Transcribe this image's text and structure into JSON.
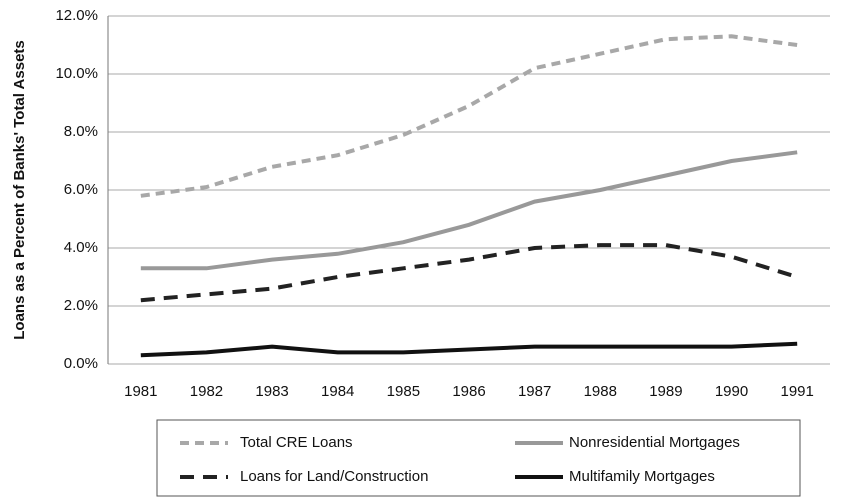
{
  "chart_data": {
    "type": "line",
    "y_label": "Loans as a Percent of Banks' Total Assets",
    "categories": [
      "1981",
      "1982",
      "1983",
      "1984",
      "1985",
      "1986",
      "1987",
      "1988",
      "1989",
      "1990",
      "1991"
    ],
    "series": [
      {
        "name": "Total CRE Loans",
        "color": "#a8a8a8",
        "style": "dashed",
        "values": [
          5.8,
          6.1,
          6.8,
          7.2,
          7.9,
          8.9,
          10.2,
          10.7,
          11.2,
          11.3,
          11.0
        ]
      },
      {
        "name": "Nonresidential Mortgages",
        "color": "#999999",
        "style": "solid",
        "values": [
          3.3,
          3.3,
          3.6,
          3.8,
          4.2,
          4.8,
          5.6,
          6.0,
          6.5,
          7.0,
          7.3
        ]
      },
      {
        "name": "Loans for Land/Construction",
        "color": "#222222",
        "style": "dashed",
        "values": [
          2.2,
          2.4,
          2.6,
          3.0,
          3.3,
          3.6,
          4.0,
          4.1,
          4.1,
          3.7,
          3.0
        ]
      },
      {
        "name": "Multifamily Mortgages",
        "color": "#111111",
        "style": "solid",
        "values": [
          0.3,
          0.4,
          0.6,
          0.4,
          0.4,
          0.5,
          0.6,
          0.6,
          0.6,
          0.6,
          0.7
        ]
      }
    ],
    "ylim": [
      0,
      12
    ],
    "yticks": [
      {
        "value": 0,
        "label": "0.0%"
      },
      {
        "value": 2,
        "label": "2.0%"
      },
      {
        "value": 4,
        "label": "4.0%"
      },
      {
        "value": 6,
        "label": "6.0%"
      },
      {
        "value": 8,
        "label": "8.0%"
      },
      {
        "value": 10,
        "label": "10.0%"
      },
      {
        "value": 12,
        "label": "12.0%"
      }
    ],
    "grid": true,
    "legend": "bottom"
  }
}
